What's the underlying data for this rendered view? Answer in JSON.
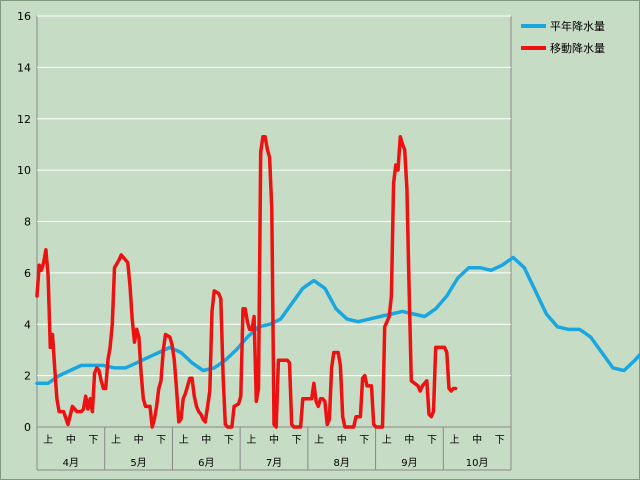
{
  "chart_data": {
    "type": "line",
    "title": "",
    "xlabel": "",
    "ylabel": "",
    "ylim": [
      0,
      16
    ],
    "yticks": [
      0,
      2,
      4,
      6,
      8,
      10,
      12,
      14,
      16
    ],
    "grid": true,
    "legend_position": "top-right",
    "months": [
      "4月",
      "5月",
      "6月",
      "7月",
      "8月",
      "9月",
      "10月"
    ],
    "dekads": [
      "上",
      "中",
      "下"
    ],
    "x_range_days": [
      1,
      215
    ],
    "series": [
      {
        "name": "平年降水量",
        "color": "#1aa7e0",
        "points": [
          [
            1,
            1.7
          ],
          [
            6,
            1.7
          ],
          [
            11,
            2.0
          ],
          [
            16,
            2.2
          ],
          [
            21,
            2.4
          ],
          [
            26,
            2.4
          ],
          [
            31,
            2.4
          ],
          [
            36,
            2.3
          ],
          [
            41,
            2.3
          ],
          [
            46,
            2.5
          ],
          [
            51,
            2.7
          ],
          [
            56,
            2.9
          ],
          [
            61,
            3.1
          ],
          [
            66,
            2.9
          ],
          [
            71,
            2.5
          ],
          [
            76,
            2.2
          ],
          [
            81,
            2.3
          ],
          [
            86,
            2.6
          ],
          [
            91,
            3.0
          ],
          [
            96,
            3.5
          ],
          [
            101,
            3.9
          ],
          [
            106,
            4.0
          ],
          [
            111,
            4.2
          ],
          [
            116,
            4.8
          ],
          [
            121,
            5.4
          ],
          [
            126,
            5.7
          ],
          [
            131,
            5.4
          ],
          [
            136,
            4.6
          ],
          [
            141,
            4.2
          ],
          [
            146,
            4.1
          ],
          [
            151,
            4.2
          ],
          [
            156,
            4.3
          ],
          [
            161,
            4.4
          ],
          [
            166,
            4.5
          ],
          [
            171,
            4.4
          ],
          [
            176,
            4.3
          ],
          [
            181,
            4.6
          ],
          [
            186,
            5.1
          ],
          [
            191,
            5.8
          ],
          [
            196,
            6.2
          ],
          [
            201,
            6.2
          ],
          [
            206,
            6.1
          ],
          [
            211,
            6.3
          ],
          [
            216,
            6.6
          ],
          [
            221,
            6.2
          ],
          [
            226,
            5.3
          ],
          [
            231,
            4.4
          ],
          [
            236,
            3.9
          ],
          [
            241,
            3.8
          ],
          [
            246,
            3.8
          ],
          [
            251,
            3.5
          ],
          [
            256,
            2.9
          ],
          [
            261,
            2.3
          ],
          [
            266,
            2.2
          ],
          [
            271,
            2.6
          ],
          [
            276,
            3.1
          ],
          [
            281,
            3.2
          ],
          [
            286,
            3.1
          ]
        ]
      },
      {
        "name": "移動降水量",
        "color": "#ee1111",
        "points": [
          [
            1,
            5.1
          ],
          [
            2,
            6.3
          ],
          [
            3,
            6.1
          ],
          [
            4,
            6.4
          ],
          [
            5,
            6.9
          ],
          [
            6,
            5.9
          ],
          [
            7,
            3.1
          ],
          [
            8,
            3.6
          ],
          [
            9,
            2.3
          ],
          [
            10,
            1.1
          ],
          [
            11,
            0.6
          ],
          [
            13,
            0.6
          ],
          [
            15,
            0.1
          ],
          [
            17,
            0.8
          ],
          [
            19,
            0.6
          ],
          [
            21,
            0.6
          ],
          [
            22,
            0.7
          ],
          [
            23,
            1.2
          ],
          [
            24,
            0.7
          ],
          [
            25,
            1.1
          ],
          [
            26,
            0.6
          ],
          [
            27,
            2.1
          ],
          [
            28,
            2.3
          ],
          [
            29,
            2.2
          ],
          [
            30,
            1.8
          ],
          [
            31,
            1.5
          ],
          [
            32,
            1.5
          ],
          [
            33,
            2.6
          ],
          [
            34,
            3.1
          ],
          [
            35,
            4.0
          ],
          [
            36,
            6.2
          ],
          [
            38,
            6.5
          ],
          [
            39,
            6.7
          ],
          [
            40,
            6.6
          ],
          [
            42,
            6.4
          ],
          [
            43,
            5.5
          ],
          [
            44,
            4.2
          ],
          [
            45,
            3.3
          ],
          [
            46,
            3.8
          ],
          [
            47,
            3.5
          ],
          [
            48,
            2.1
          ],
          [
            49,
            1.1
          ],
          [
            50,
            0.8
          ],
          [
            52,
            0.8
          ],
          [
            53,
            0.0
          ],
          [
            54,
            0.3
          ],
          [
            55,
            0.8
          ],
          [
            56,
            1.5
          ],
          [
            57,
            1.8
          ],
          [
            58,
            3.0
          ],
          [
            59,
            3.6
          ],
          [
            61,
            3.5
          ],
          [
            62,
            3.2
          ],
          [
            63,
            2.6
          ],
          [
            64,
            1.5
          ],
          [
            65,
            0.2
          ],
          [
            66,
            0.3
          ],
          [
            67,
            1.1
          ],
          [
            68,
            1.3
          ],
          [
            69,
            1.6
          ],
          [
            70,
            1.9
          ],
          [
            71,
            1.9
          ],
          [
            72,
            1.2
          ],
          [
            73,
            0.8
          ],
          [
            74,
            0.6
          ],
          [
            75,
            0.5
          ],
          [
            76,
            0.3
          ],
          [
            77,
            0.2
          ],
          [
            78,
            0.8
          ],
          [
            79,
            1.4
          ],
          [
            80,
            4.5
          ],
          [
            81,
            5.3
          ],
          [
            83,
            5.2
          ],
          [
            84,
            5.0
          ],
          [
            85,
            2.0
          ],
          [
            86,
            0.1
          ],
          [
            87,
            0.0
          ],
          [
            88,
            0.0
          ],
          [
            89,
            0.0
          ],
          [
            90,
            0.8
          ],
          [
            92,
            0.9
          ],
          [
            93,
            1.2
          ],
          [
            94,
            4.6
          ],
          [
            95,
            4.6
          ],
          [
            96,
            4.1
          ],
          [
            97,
            3.8
          ],
          [
            98,
            3.8
          ],
          [
            99,
            4.3
          ],
          [
            100,
            1.0
          ],
          [
            101,
            1.5
          ],
          [
            102,
            10.7
          ],
          [
            103,
            11.3
          ],
          [
            104,
            11.3
          ],
          [
            105,
            10.8
          ],
          [
            106,
            10.5
          ],
          [
            107,
            8.5
          ],
          [
            108,
            0.1
          ],
          [
            109,
            0.0
          ],
          [
            110,
            2.6
          ],
          [
            114,
            2.6
          ],
          [
            115,
            2.5
          ],
          [
            116,
            0.1
          ],
          [
            117,
            0.0
          ],
          [
            120,
            0.0
          ],
          [
            121,
            1.1
          ],
          [
            125,
            1.1
          ],
          [
            126,
            1.7
          ],
          [
            127,
            1.0
          ],
          [
            128,
            0.8
          ],
          [
            129,
            1.1
          ],
          [
            130,
            1.1
          ],
          [
            131,
            1.0
          ],
          [
            132,
            0.1
          ],
          [
            133,
            0.3
          ],
          [
            134,
            2.3
          ],
          [
            135,
            2.9
          ],
          [
            137,
            2.9
          ],
          [
            138,
            2.4
          ],
          [
            139,
            0.4
          ],
          [
            140,
            0.0
          ],
          [
            144,
            0.0
          ],
          [
            145,
            0.4
          ],
          [
            147,
            0.4
          ],
          [
            148,
            1.9
          ],
          [
            149,
            2.0
          ],
          [
            150,
            1.6
          ],
          [
            152,
            1.6
          ],
          [
            153,
            0.1
          ],
          [
            154,
            0.0
          ],
          [
            157,
            0.0
          ],
          [
            158,
            3.9
          ],
          [
            159,
            4.1
          ],
          [
            160,
            4.3
          ],
          [
            161,
            5.1
          ],
          [
            162,
            9.5
          ],
          [
            163,
            10.2
          ],
          [
            164,
            10.0
          ],
          [
            165,
            11.3
          ],
          [
            166,
            11.0
          ],
          [
            167,
            10.8
          ],
          [
            168,
            9.3
          ],
          [
            169,
            5.4
          ],
          [
            170,
            1.8
          ],
          [
            173,
            1.6
          ],
          [
            174,
            1.4
          ],
          [
            175,
            1.6
          ],
          [
            177,
            1.8
          ],
          [
            178,
            0.5
          ],
          [
            179,
            0.4
          ],
          [
            180,
            0.6
          ],
          [
            181,
            3.1
          ],
          [
            185,
            3.1
          ],
          [
            186,
            2.9
          ],
          [
            187,
            1.5
          ],
          [
            188,
            1.4
          ],
          [
            189,
            1.5
          ],
          [
            190,
            1.5
          ]
        ]
      }
    ]
  }
}
